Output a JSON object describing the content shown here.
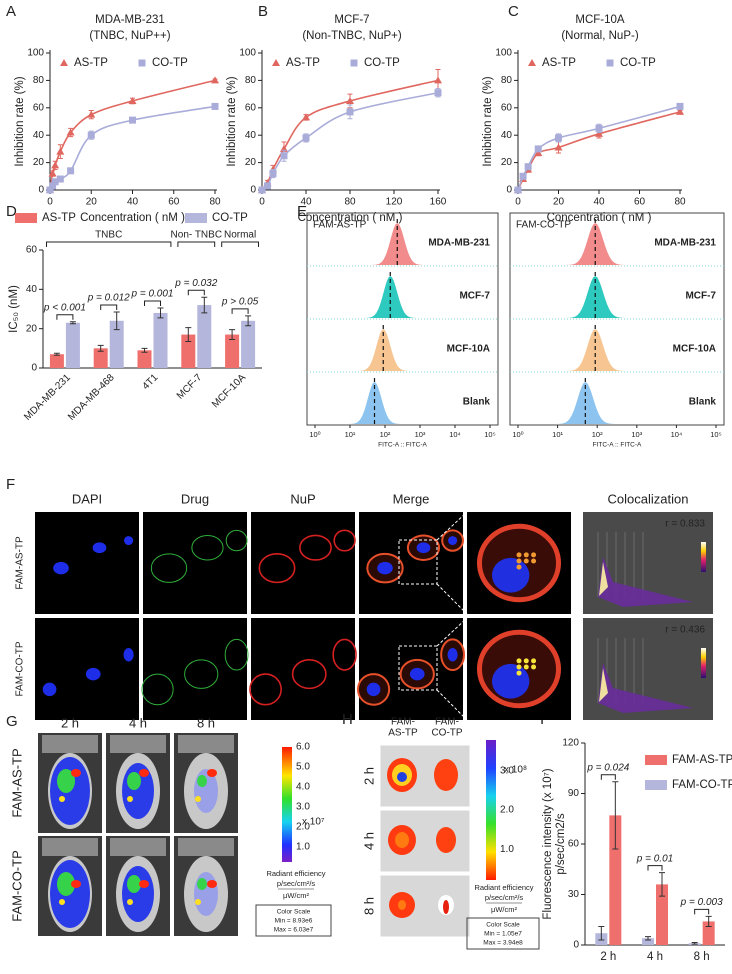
{
  "chart_data": [
    {
      "panel": "A",
      "type": "line",
      "title": "MDA-MB-231",
      "subtitle": "(TNBC, NuP++)",
      "xlabel": "Concentration ( nM )",
      "ylabel": "Inhibition rate (%)",
      "x": [
        0,
        1.25,
        2.5,
        5,
        10,
        20,
        40,
        80
      ],
      "series": [
        {
          "name": "AS-TP",
          "color": "#e0675f",
          "marker": "triangle",
          "values": [
            0,
            12,
            18,
            28,
            42,
            55,
            65,
            80
          ],
          "errors": [
            0,
            2,
            3,
            5,
            3,
            3,
            2,
            1
          ]
        },
        {
          "name": "CO-TP",
          "color": "#a9acd9",
          "marker": "square",
          "values": [
            0,
            3,
            6,
            8,
            14,
            40,
            51,
            61
          ],
          "errors": [
            0,
            1,
            1,
            1,
            1,
            3,
            1,
            1
          ]
        }
      ],
      "xlim": [
        0,
        80
      ],
      "xticks": [
        0,
        20,
        40,
        60,
        80
      ],
      "ylim": [
        0,
        100
      ],
      "yticks": [
        0,
        20,
        40,
        60,
        80,
        100
      ]
    },
    {
      "panel": "B",
      "type": "line",
      "title": "MCF-7",
      "subtitle": "(Non-TNBC, NuP+)",
      "xlabel": "Concentration ( nM )",
      "ylabel": "Inhibition rate (%)",
      "x": [
        0,
        5,
        10,
        20,
        40,
        80,
        160
      ],
      "series": [
        {
          "name": "AS-TP",
          "color": "#e0675f",
          "marker": "triangle",
          "values": [
            0,
            5,
            15,
            30,
            53,
            65,
            80
          ],
          "errors": [
            1,
            2,
            3,
            5,
            2,
            5,
            8
          ]
        },
        {
          "name": "CO-TP",
          "color": "#a9acd9",
          "marker": "square",
          "values": [
            0,
            3,
            12,
            25,
            38,
            57,
            71
          ],
          "errors": [
            1,
            2,
            3,
            4,
            3,
            5,
            3
          ]
        }
      ],
      "xlim": [
        0,
        160
      ],
      "xticks": [
        0,
        40,
        80,
        120,
        160
      ],
      "ylim": [
        0,
        100
      ],
      "yticks": [
        0,
        20,
        40,
        60,
        80,
        100
      ]
    },
    {
      "panel": "C",
      "type": "line",
      "title": "MCF-10A",
      "subtitle": "(Normal, NuP-)",
      "xlabel": "Concentration ( nM )",
      "ylabel": "Inhibition rate (%)",
      "x": [
        0,
        2.5,
        5,
        10,
        20,
        40,
        80
      ],
      "series": [
        {
          "name": "AS-TP",
          "color": "#e0675f",
          "marker": "triangle",
          "values": [
            0,
            8,
            15,
            27,
            31,
            41,
            57
          ],
          "errors": [
            1,
            1,
            2,
            2,
            4,
            3,
            1
          ]
        },
        {
          "name": "CO-TP",
          "color": "#a9acd9",
          "marker": "square",
          "values": [
            0,
            10,
            17,
            30,
            38,
            45,
            61
          ],
          "errors": [
            1,
            1,
            2,
            2,
            3,
            3,
            1
          ]
        }
      ],
      "xlim": [
        0,
        80
      ],
      "xticks": [
        0,
        20,
        40,
        60,
        80
      ],
      "ylim": [
        0,
        100
      ],
      "yticks": [
        0,
        20,
        40,
        60,
        80,
        100
      ]
    },
    {
      "panel": "D",
      "type": "bar",
      "ylabel": "IC₅₀ (nM)",
      "categories": [
        "MDA-MB-231",
        "MDA-MB-468",
        "4T1",
        "MCF-7",
        "MCF-10A"
      ],
      "series": [
        {
          "name": "AS-TP",
          "color": "#ef6f6c",
          "values": [
            7,
            10,
            9,
            17,
            17
          ],
          "errors": [
            0.5,
            1.5,
            1,
            3.5,
            2.5
          ]
        },
        {
          "name": "CO-TP",
          "color": "#b4b6dc",
          "values": [
            23,
            24,
            28,
            32,
            24
          ],
          "errors": [
            0.5,
            4.5,
            2.5,
            4,
            2.5
          ]
        }
      ],
      "ylim": [
        0,
        60
      ],
      "yticks": [
        0,
        20,
        40,
        60
      ],
      "groups": [
        {
          "label": "TNBC",
          "categories": [
            "MDA-MB-231",
            "MDA-MB-468",
            "4T1"
          ]
        },
        {
          "label": "Non- TNBC",
          "categories": [
            "MCF-7"
          ]
        },
        {
          "label": "Normal",
          "categories": [
            "MCF-10A"
          ]
        }
      ],
      "p_values": [
        "p < 0.001",
        "p = 0.012",
        "p = 0.001",
        "p = 0.032",
        "p > 0.05"
      ]
    },
    {
      "panel": "I",
      "type": "bar",
      "ylabel": "Fluorescence intensity  (x 10⁷)",
      "ylabel2": "p/sec/cm2/s",
      "categories": [
        "2 h",
        "4 h",
        "8 h"
      ],
      "series": [
        {
          "name": "FAM-AS-TP",
          "color": "#ef6f6c",
          "values": [
            77,
            36,
            14
          ],
          "errors": [
            20,
            7,
            3
          ]
        },
        {
          "name": "FAM-CO-TP",
          "color": "#b4b6dc",
          "values": [
            7,
            4,
            1
          ],
          "errors": [
            4,
            1,
            0.5
          ]
        }
      ],
      "ylim": [
        0,
        120
      ],
      "yticks": [
        0,
        30,
        60,
        90,
        120
      ],
      "legend": "upper right",
      "p_values": [
        "p = 0.024",
        "p = 0.01",
        "p = 0.003"
      ]
    }
  ],
  "flow": {
    "panel": "E",
    "titles": [
      "FAM-AS-TP",
      "FAM-CO-TP"
    ],
    "samples": [
      "MDA-MB-231",
      "MCF-7",
      "MCF-10A",
      "Blank"
    ],
    "sample_colors": [
      "#e9a23b",
      "#8b34c9",
      "#3b93d3",
      "#b5b5b5"
    ],
    "xticks": [
      "10⁰",
      "10¹",
      "10²",
      "10³",
      "10⁴",
      "10⁵"
    ],
    "xlabel": "FITC-A :: FITC-A"
  },
  "microscopy": {
    "panel": "F",
    "columns": [
      "DAPI",
      "Drug",
      "NuP",
      "Merge",
      "Colocalization"
    ],
    "rows": [
      "FAM-AS-TP",
      "FAM-CO-TP"
    ],
    "coefficients": [
      "r = 0.833",
      "r = 0.436"
    ]
  },
  "in_vivo": {
    "panel": "G",
    "times": [
      "2 h",
      "4 h",
      "8 h"
    ],
    "rows": [
      "FAM-AS-TP",
      "FAM-CO-TP"
    ],
    "scale_ticks": [
      "6.0",
      "5.0",
      "4.0",
      "3.0",
      "2.0",
      "1.0"
    ],
    "scale_exponent": "x 10⁷",
    "units": [
      "Radiant efficiency",
      "p/sec/cm²/s",
      "μW/cm²"
    ],
    "color_scale": [
      "Color Scale",
      "Min = 8.93e6",
      "Max = 6.03e7"
    ]
  },
  "ex_vivo": {
    "panel": "H",
    "columns": [
      [
        "FAM-",
        "AS-TP"
      ],
      [
        "FAM-",
        "CO-TP"
      ]
    ],
    "rows": [
      "2 h",
      "4 h",
      "8 h"
    ],
    "scale_ticks": [
      "3.0",
      "2.0",
      "1.0"
    ],
    "scale_exponent": "x 10⁸",
    "units": [
      "Radiant efficiency",
      "p/sec/cm²/s",
      "μW/cm²"
    ],
    "color_scale": [
      "Color Scale",
      "Min = 1.05e7",
      "Max = 3.94e8"
    ]
  }
}
